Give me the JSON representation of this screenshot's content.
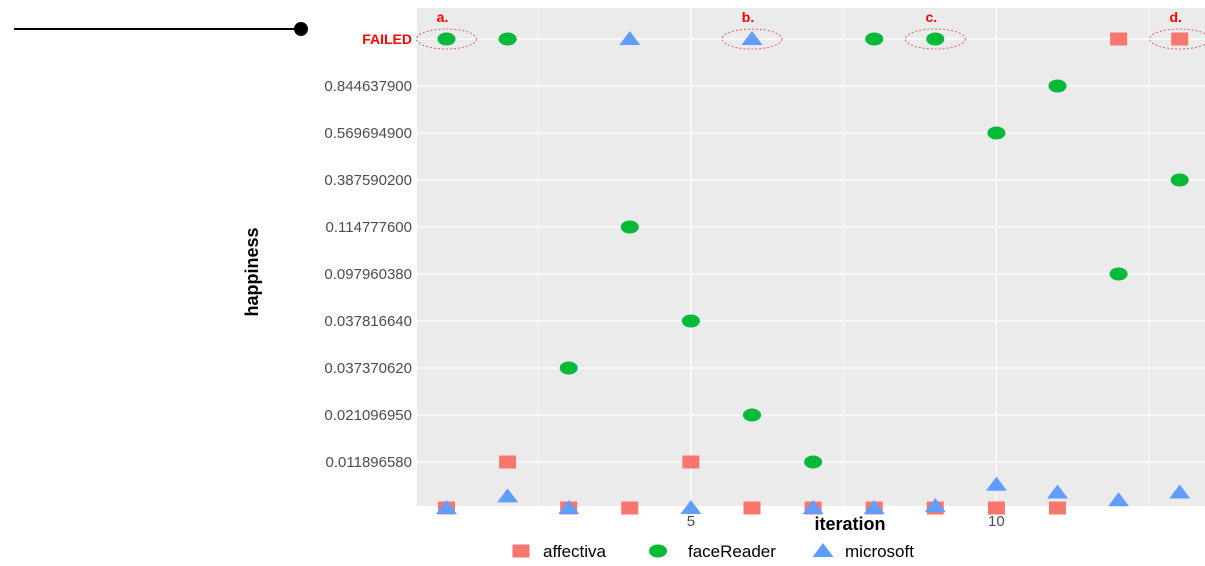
{
  "chart_data": {
    "type": "scatter",
    "xlabel": "iteration",
    "ylabel": "happiness",
    "x_ticks": [
      5,
      10
    ],
    "xlim": [
      0.5,
      13.5
    ],
    "y_categories": [
      "0.011896580",
      "0.021096950",
      "0.037370620",
      "0.037816640",
      "0.097960380",
      "0.114777600",
      "0.387590200",
      "0.569694900",
      "0.844637900",
      "FAILED"
    ],
    "grid": true,
    "legend_position": "bottom",
    "colors": {
      "affectiva": "#f8766d",
      "faceReader": "#00ba38",
      "microsoft": "#619cff",
      "failed": "#ff0000",
      "panel": "#ebebeb"
    },
    "series": [
      {
        "name": "affectiva",
        "shape": "square",
        "points": [
          {
            "x": 1,
            "y": 0
          },
          {
            "x": 2,
            "y": 0.01189658
          },
          {
            "x": 3,
            "y": 0
          },
          {
            "x": 4,
            "y": 0
          },
          {
            "x": 5,
            "y": 0.01189658
          },
          {
            "x": 6,
            "y": 0
          },
          {
            "x": 7,
            "y": 0
          },
          {
            "x": 8,
            "y": 0
          },
          {
            "x": 9,
            "y": 0
          },
          {
            "x": 10,
            "y": 0
          },
          {
            "x": 11,
            "y": 0
          },
          {
            "x": 12,
            "y": "FAILED"
          },
          {
            "x": 13,
            "y": "FAILED"
          }
        ]
      },
      {
        "name": "faceReader",
        "shape": "circle",
        "points": [
          {
            "x": 1,
            "y": "FAILED"
          },
          {
            "x": 2,
            "y": "FAILED"
          },
          {
            "x": 3,
            "y": 0.03737062
          },
          {
            "x": 4,
            "y": 0.1147776
          },
          {
            "x": 5,
            "y": 0.03781664
          },
          {
            "x": 6,
            "y": 0.02109695
          },
          {
            "x": 7,
            "y": 0.01189658
          },
          {
            "x": 8,
            "y": "FAILED"
          },
          {
            "x": 9,
            "y": "FAILED"
          },
          {
            "x": 10,
            "y": 0.5696949
          },
          {
            "x": 11,
            "y": 0.8446379
          },
          {
            "x": 12,
            "y": 0.09796038
          },
          {
            "x": 13,
            "y": 0.3875902
          }
        ]
      },
      {
        "name": "microsoft",
        "shape": "triangle",
        "points": [
          {
            "x": 1,
            "y": 0
          },
          {
            "x": 2,
            "y": 0.003
          },
          {
            "x": 3,
            "y": 0
          },
          {
            "x": 4,
            "y": "FAILED"
          },
          {
            "x": 5,
            "y": 0
          },
          {
            "x": 6,
            "y": "FAILED"
          },
          {
            "x": 7,
            "y": 0
          },
          {
            "x": 8,
            "y": 0
          },
          {
            "x": 9,
            "y": 0.0005
          },
          {
            "x": 10,
            "y": 0.006
          },
          {
            "x": 11,
            "y": 0.004
          },
          {
            "x": 12,
            "y": 0.002
          },
          {
            "x": 13,
            "y": 0.004
          }
        ]
      }
    ],
    "annotations": [
      {
        "label": "a.",
        "x": 1,
        "y": "FAILED"
      },
      {
        "label": "b.",
        "x": 6,
        "y": "FAILED"
      },
      {
        "label": "c.",
        "x": 9,
        "y": "FAILED"
      },
      {
        "label": "d.",
        "x": 13,
        "y": "FAILED"
      }
    ]
  }
}
